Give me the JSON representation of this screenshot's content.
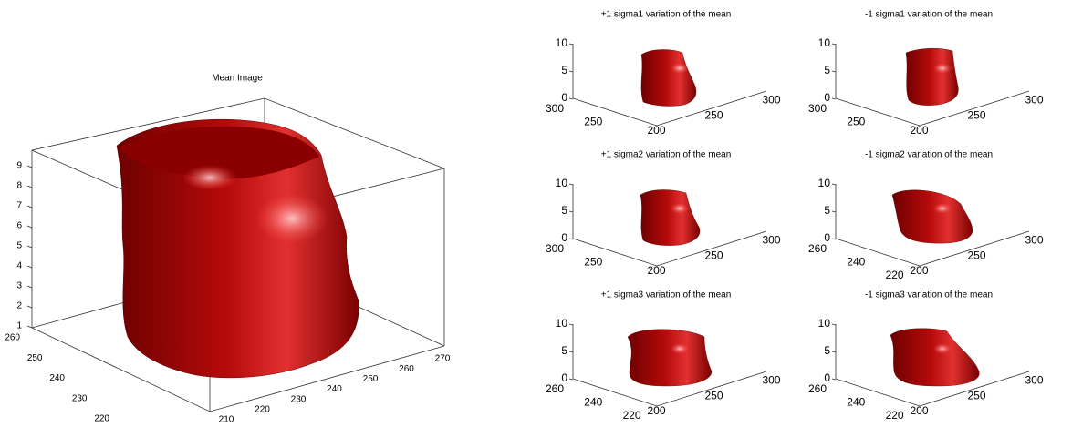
{
  "main": {
    "title": "Mean Image",
    "zticks": [
      1,
      2,
      3,
      4,
      5,
      6,
      7,
      8,
      9
    ],
    "yticks": [
      260,
      250,
      240,
      230,
      220
    ],
    "xticks": [
      210,
      220,
      230,
      240,
      250,
      260,
      270
    ]
  },
  "panels": [
    {
      "title": "+1 sigma1 variation of the mean",
      "zticks": [
        0,
        5,
        10
      ],
      "yticks": [
        300,
        250
      ],
      "xticks": [
        200,
        250,
        300
      ]
    },
    {
      "title": "-1 sigma1 variation of the mean",
      "zticks": [
        0,
        5,
        10
      ],
      "yticks": [
        300,
        250
      ],
      "xticks": [
        200,
        250,
        300
      ]
    },
    {
      "title": "+1 sigma2 variation of the mean",
      "zticks": [
        0,
        5,
        10
      ],
      "yticks": [
        300,
        250
      ],
      "xticks": [
        200,
        250,
        300
      ]
    },
    {
      "title": "-1 sigma2 variation of the mean",
      "zticks": [
        0,
        5,
        10
      ],
      "yticks": [
        260,
        240,
        220
      ],
      "xticks": [
        200,
        250,
        300
      ]
    },
    {
      "title": "+1 sigma3 variation of the mean",
      "zticks": [
        0,
        5,
        10
      ],
      "yticks": [
        260,
        240,
        220
      ],
      "xticks": [
        200,
        250,
        300
      ]
    },
    {
      "title": "-1 sigma3 variation of the mean",
      "zticks": [
        0,
        5,
        10
      ],
      "yticks": [
        260,
        240,
        220
      ],
      "xticks": [
        200,
        250,
        300
      ]
    }
  ]
}
